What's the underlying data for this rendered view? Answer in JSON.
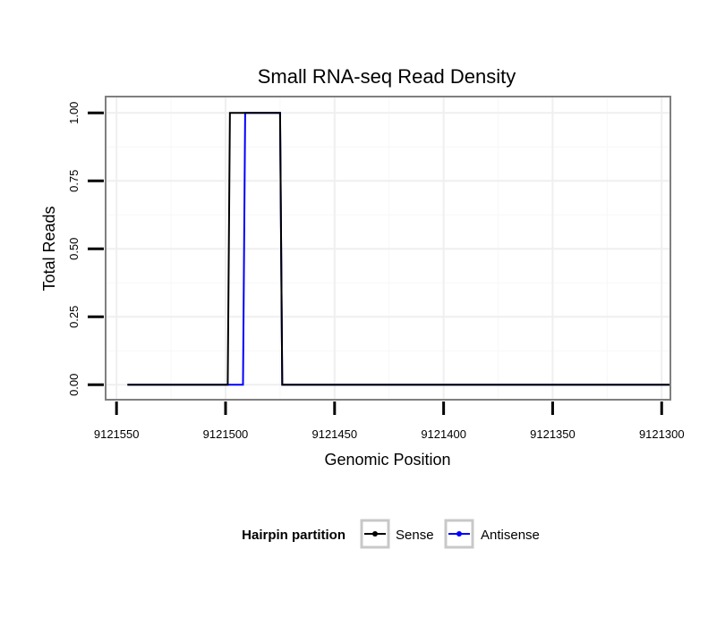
{
  "chart_data": {
    "type": "line",
    "title": "Small RNA-seq Read Density",
    "xlabel": "Genomic Position",
    "ylabel": "Total Reads",
    "x_reversed": true,
    "xlim": [
      9121555,
      9121296
    ],
    "ylim": [
      -0.055,
      1.06
    ],
    "xticks": [
      9121550,
      9121500,
      9121450,
      9121400,
      9121350,
      9121300
    ],
    "xtick_labels": [
      "9121550",
      "9121500",
      "9121450",
      "9121400",
      "9121350",
      "9121300"
    ],
    "yticks": [
      0,
      0.25,
      0.5,
      0.75,
      1
    ],
    "ytick_labels": [
      "0.00",
      "0.25",
      "0.50",
      "0.75",
      "1.00"
    ],
    "grid": true,
    "legend": {
      "title": "Hairpin partition",
      "position": "bottom"
    },
    "series": [
      {
        "name": "Sense",
        "color": "#000000",
        "x": [
          9121545,
          9121499,
          9121498,
          9121475,
          9121474,
          9121296
        ],
        "y": [
          0,
          0,
          1,
          1,
          0,
          0
        ]
      },
      {
        "name": "Antisense",
        "color": "#0000ff",
        "x": [
          9121545,
          9121492,
          9121491,
          9121475,
          9121474,
          9121296
        ],
        "y": [
          0,
          0,
          1,
          1,
          0,
          0
        ]
      }
    ]
  }
}
